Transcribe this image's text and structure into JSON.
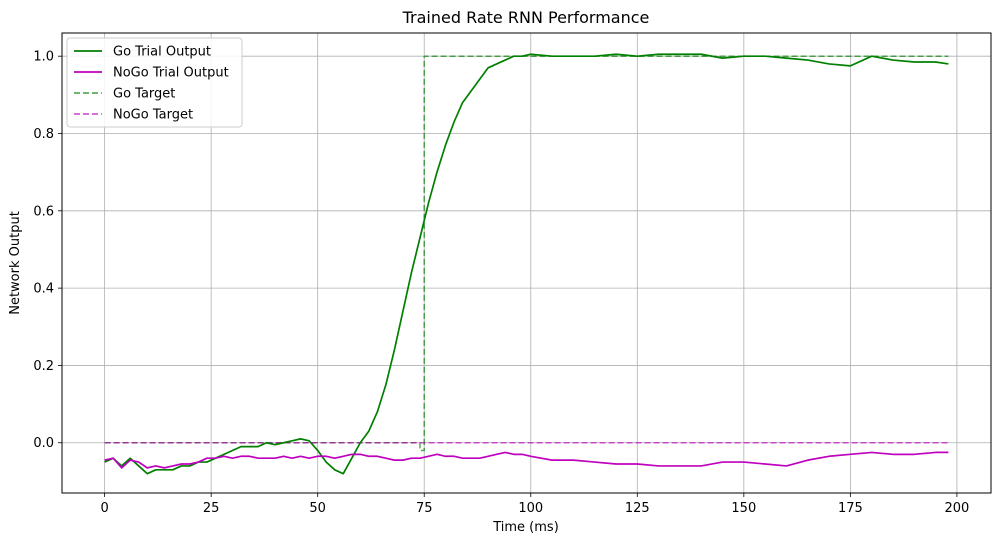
{
  "chart_data": {
    "type": "line",
    "title": "Trained Rate RNN Performance",
    "xlabel": "Time (ms)",
    "ylabel": "Network Output",
    "xlim": [
      -10,
      208
    ],
    "ylim": [
      -0.13,
      1.06
    ],
    "xticks": [
      0,
      25,
      50,
      75,
      100,
      125,
      150,
      175,
      200
    ],
    "yticks": [
      0.0,
      0.2,
      0.4,
      0.6,
      0.8,
      1.0
    ],
    "xtick_labels": [
      "0",
      "25",
      "50",
      "75",
      "100",
      "125",
      "150",
      "175",
      "200"
    ],
    "ytick_labels": [
      "0.0",
      "0.2",
      "0.4",
      "0.6",
      "0.8",
      "1.0"
    ],
    "grid": true,
    "legend_position": "top-left",
    "series": [
      {
        "name": "Go Trial Output",
        "color": "#008000",
        "style": "solid",
        "x": [
          0,
          2,
          4,
          6,
          8,
          10,
          12,
          14,
          16,
          18,
          20,
          22,
          24,
          26,
          28,
          30,
          32,
          34,
          36,
          38,
          40,
          42,
          44,
          46,
          48,
          50,
          52,
          54,
          56,
          58,
          60,
          62,
          64,
          66,
          68,
          70,
          72,
          74,
          76,
          78,
          80,
          82,
          84,
          86,
          88,
          90,
          92,
          94,
          96,
          98,
          100,
          105,
          110,
          115,
          120,
          125,
          130,
          135,
          140,
          145,
          150,
          155,
          160,
          165,
          170,
          175,
          180,
          185,
          190,
          195,
          198
        ],
        "y": [
          -0.05,
          -0.04,
          -0.06,
          -0.04,
          -0.06,
          -0.08,
          -0.07,
          -0.07,
          -0.07,
          -0.06,
          -0.06,
          -0.05,
          -0.05,
          -0.04,
          -0.03,
          -0.02,
          -0.01,
          -0.01,
          -0.01,
          0.0,
          -0.005,
          0.0,
          0.005,
          0.01,
          0.005,
          -0.02,
          -0.05,
          -0.07,
          -0.08,
          -0.04,
          0.0,
          0.03,
          0.08,
          0.15,
          0.24,
          0.34,
          0.44,
          0.53,
          0.62,
          0.7,
          0.77,
          0.83,
          0.88,
          0.91,
          0.94,
          0.97,
          0.98,
          0.99,
          1.0,
          1.0,
          1.005,
          1.0,
          1.0,
          1.0,
          1.005,
          1.0,
          1.005,
          1.005,
          1.005,
          0.995,
          1.0,
          1.0,
          0.995,
          0.99,
          0.98,
          0.975,
          1.0,
          0.99,
          0.985,
          0.985,
          0.98
        ]
      },
      {
        "name": "NoGo Trial Output",
        "color": "#bf00bf",
        "style": "solid",
        "x": [
          0,
          2,
          4,
          6,
          8,
          10,
          12,
          14,
          16,
          18,
          20,
          22,
          24,
          26,
          28,
          30,
          32,
          34,
          36,
          38,
          40,
          42,
          44,
          46,
          48,
          50,
          52,
          54,
          56,
          58,
          60,
          62,
          64,
          66,
          68,
          70,
          72,
          74,
          76,
          78,
          80,
          82,
          84,
          86,
          88,
          90,
          92,
          94,
          96,
          98,
          100,
          105,
          110,
          115,
          120,
          125,
          130,
          135,
          140,
          145,
          150,
          155,
          160,
          165,
          170,
          175,
          180,
          185,
          190,
          195,
          198
        ],
        "y": [
          -0.045,
          -0.04,
          -0.065,
          -0.045,
          -0.05,
          -0.065,
          -0.06,
          -0.065,
          -0.06,
          -0.055,
          -0.055,
          -0.05,
          -0.04,
          -0.04,
          -0.035,
          -0.04,
          -0.035,
          -0.035,
          -0.04,
          -0.04,
          -0.04,
          -0.035,
          -0.04,
          -0.035,
          -0.04,
          -0.035,
          -0.035,
          -0.04,
          -0.035,
          -0.03,
          -0.03,
          -0.035,
          -0.035,
          -0.04,
          -0.045,
          -0.045,
          -0.04,
          -0.04,
          -0.035,
          -0.03,
          -0.035,
          -0.035,
          -0.04,
          -0.04,
          -0.04,
          -0.035,
          -0.03,
          -0.025,
          -0.03,
          -0.03,
          -0.035,
          -0.045,
          -0.045,
          -0.05,
          -0.055,
          -0.055,
          -0.06,
          -0.06,
          -0.06,
          -0.05,
          -0.05,
          -0.055,
          -0.06,
          -0.045,
          -0.035,
          -0.03,
          -0.025,
          -0.03,
          -0.03,
          -0.025,
          -0.025
        ]
      },
      {
        "name": "Go Target",
        "color": "#008000",
        "style": "dashed",
        "x": [
          0,
          74,
          74,
          75,
          75,
          198
        ],
        "y": [
          0.0,
          0.0,
          -0.02,
          -0.02,
          1.0,
          1.0
        ]
      },
      {
        "name": "NoGo Target",
        "color": "#bf00bf",
        "style": "dashed",
        "x": [
          0,
          198
        ],
        "y": [
          0.0,
          0.0
        ]
      }
    ]
  }
}
